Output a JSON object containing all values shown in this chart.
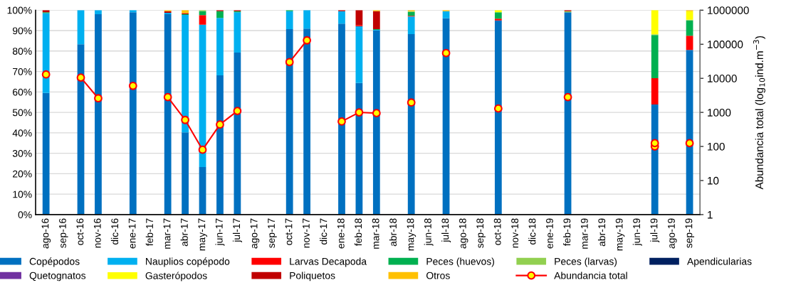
{
  "chart_data": {
    "type": "bar",
    "stacked": true,
    "ylabel": null,
    "y2label": "Abundancia total (log$_{10}$ind.m$^{−3}$)",
    "categories": [
      "ago-16",
      "sep-16",
      "oct-16",
      "nov-16",
      "dic-16",
      "ene-17",
      "feb-17",
      "mar-17",
      "abr-17",
      "may-17",
      "jun-17",
      "jul-17",
      "ago-17",
      "sep-17",
      "oct-17",
      "nov-17",
      "dic-17",
      "ene-18",
      "feb-18",
      "mar-18",
      "abr-18",
      "may-18",
      "jun-18",
      "jul-18",
      "ago-18",
      "sep-18",
      "oct-18",
      "nov-18",
      "dic-18",
      "ene-19",
      "feb-19",
      "mar-19",
      "abr-19",
      "may-19",
      "jun-19",
      "jul-19",
      "ago-19",
      "sep-19"
    ],
    "ylim": [
      0,
      100
    ],
    "yticks": [
      {
        "value": 0,
        "label": "0%"
      },
      {
        "value": 10,
        "label": "10%"
      },
      {
        "value": 20,
        "label": "20%"
      },
      {
        "value": 30,
        "label": "30%"
      },
      {
        "value": 40,
        "label": "40%"
      },
      {
        "value": 50,
        "label": "50%"
      },
      {
        "value": 60,
        "label": "60%"
      },
      {
        "value": 70,
        "label": "70%"
      },
      {
        "value": 80,
        "label": "80%"
      },
      {
        "value": 90,
        "label": "90%"
      },
      {
        "value": 100,
        "label": "100%"
      }
    ],
    "y2lim": [
      1,
      1000000
    ],
    "y2ticks": [
      1,
      10,
      100,
      1000,
      10000,
      100000,
      1000000
    ],
    "log": "y2",
    "grid": "y",
    "legend": "bottom",
    "series": [
      {
        "name": "Copépodos",
        "color": "#0070c0",
        "values": [
          59.5,
          null,
          83.3,
          98,
          null,
          99,
          null,
          98,
          40.2,
          23.3,
          68.1,
          79.2,
          null,
          null,
          90.7,
          91,
          null,
          93.4,
          64.4,
          90.1,
          null,
          88.3,
          null,
          96,
          null,
          null,
          95,
          null,
          null,
          null,
          99,
          null,
          null,
          null,
          null,
          53.9,
          null,
          80.5
        ]
      },
      {
        "name": "Nauplios copépodo",
        "color": "#00b0f0",
        "values": [
          39,
          null,
          16.7,
          2,
          null,
          1,
          null,
          0.7,
          57.5,
          69.6,
          28.1,
          19.8,
          null,
          null,
          8.8,
          9,
          null,
          6.1,
          27.7,
          0.3,
          null,
          8.6,
          null,
          3.5,
          null,
          null,
          null,
          null,
          null,
          null,
          null,
          null,
          null,
          null,
          null,
          null,
          null,
          null
        ]
      },
      {
        "name": "Larvas Decapoda",
        "color": "#ff0000",
        "values": [
          null,
          null,
          null,
          null,
          null,
          null,
          null,
          null,
          null,
          4.7,
          null,
          null,
          null,
          null,
          null,
          null,
          null,
          null,
          0.5,
          null,
          null,
          0.3,
          null,
          null,
          null,
          null,
          0.8,
          null,
          null,
          null,
          null,
          null,
          null,
          null,
          null,
          12.8,
          null,
          7
        ]
      },
      {
        "name": "Peces (huevos)",
        "color": "#00b050",
        "values": [
          0.5,
          null,
          null,
          null,
          null,
          null,
          null,
          null,
          0.3,
          1.9,
          3.3,
          0.5,
          null,
          null,
          0.5,
          null,
          null,
          null,
          null,
          0.3,
          null,
          1.9,
          null,
          null,
          null,
          null,
          3.2,
          null,
          null,
          null,
          null,
          null,
          null,
          null,
          null,
          21.1,
          null,
          7.5
        ]
      },
      {
        "name": "Peces (larvas)",
        "color": "#92d050",
        "values": [
          null,
          null,
          null,
          null,
          null,
          null,
          null,
          null,
          null,
          0.5,
          null,
          null,
          null,
          null,
          null,
          null,
          null,
          null,
          null,
          null,
          null,
          0.4,
          null,
          null,
          null,
          null,
          null,
          null,
          null,
          null,
          0.5,
          null,
          null,
          null,
          null,
          0.4,
          null,
          0.3
        ]
      },
      {
        "name": "Apendicularias",
        "color": "#002060",
        "values": [
          null,
          null,
          null,
          null,
          null,
          null,
          null,
          null,
          null,
          null,
          null,
          null,
          null,
          null,
          null,
          null,
          null,
          null,
          null,
          null,
          null,
          null,
          null,
          null,
          null,
          null,
          null,
          null,
          null,
          null,
          null,
          null,
          null,
          null,
          null,
          null,
          null,
          null
        ]
      },
      {
        "name": "Quetognatos",
        "color": "#7030a0",
        "values": [
          null,
          null,
          null,
          null,
          null,
          null,
          null,
          null,
          null,
          null,
          null,
          null,
          null,
          null,
          null,
          null,
          null,
          null,
          null,
          null,
          null,
          null,
          null,
          null,
          null,
          null,
          null,
          null,
          null,
          null,
          null,
          null,
          null,
          null,
          null,
          null,
          null,
          null
        ]
      },
      {
        "name": "Gasterópodos",
        "color": "#ffff00",
        "values": [
          null,
          null,
          null,
          null,
          null,
          null,
          null,
          null,
          null,
          null,
          null,
          null,
          null,
          null,
          null,
          null,
          null,
          null,
          null,
          null,
          null,
          null,
          null,
          null,
          null,
          null,
          1,
          null,
          null,
          null,
          null,
          null,
          null,
          null,
          null,
          11.8,
          null,
          4.2
        ]
      },
      {
        "name": "Poliquetos",
        "color": "#c00000",
        "values": [
          1,
          null,
          null,
          null,
          null,
          null,
          null,
          0.8,
          0.5,
          null,
          0.5,
          0.5,
          null,
          null,
          null,
          null,
          null,
          0.5,
          7.4,
          8.8,
          null,
          null,
          null,
          null,
          null,
          null,
          null,
          null,
          null,
          null,
          0.5,
          null,
          null,
          null,
          null,
          null,
          null,
          null
        ]
      },
      {
        "name": "Otros",
        "color": "#ffc000",
        "values": [
          null,
          null,
          null,
          null,
          null,
          null,
          null,
          0.5,
          1.5,
          null,
          null,
          null,
          null,
          null,
          null,
          null,
          null,
          null,
          null,
          0.5,
          null,
          0.5,
          null,
          0.5,
          null,
          null,
          null,
          null,
          null,
          null,
          null,
          null,
          null,
          null,
          null,
          null,
          null,
          0.5
        ]
      },
      {
        "name": "Abundancia total",
        "type": "line",
        "axis": "y2",
        "color": "#ff0000",
        "marker": "circle",
        "values": [
          13000,
          null,
          10500,
          2600,
          null,
          6000,
          null,
          2800,
          600,
          80,
          440,
          1100,
          null,
          null,
          30000,
          130000,
          null,
          540,
          1000,
          950,
          null,
          1950,
          null,
          55000,
          null,
          null,
          1300,
          null,
          null,
          null,
          2800,
          null,
          null,
          null,
          null,
          100,
          null,
          125
        ]
      },
      {
        "type": "scatter",
        "axis": "y2",
        "color": "#ff0000",
        "marker": "circle",
        "values": [
          null,
          null,
          null,
          null,
          null,
          null,
          null,
          null,
          null,
          null,
          null,
          null,
          null,
          null,
          null,
          null,
          null,
          null,
          null,
          null,
          null,
          null,
          null,
          null,
          null,
          null,
          null,
          null,
          null,
          null,
          null,
          null,
          null,
          null,
          null,
          125,
          null,
          null
        ]
      }
    ]
  }
}
